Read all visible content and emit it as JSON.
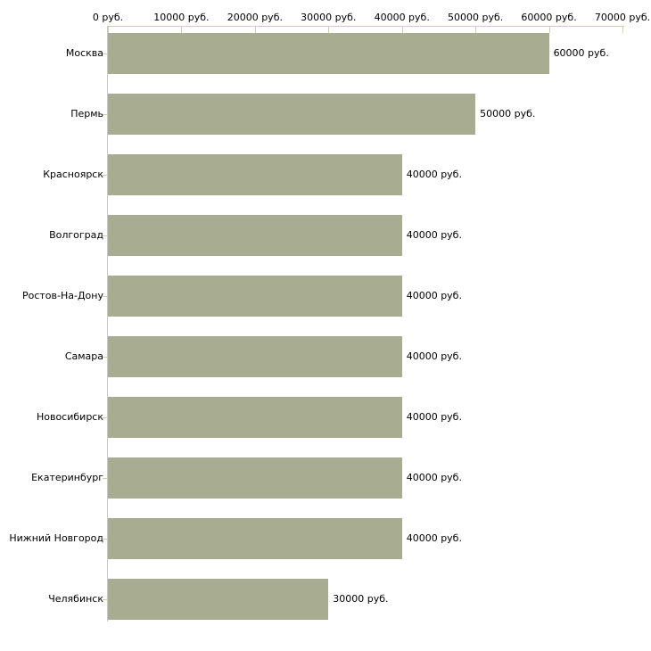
{
  "chart": {
    "background_color": "#ffffff",
    "bar_color": "#a8ad92",
    "value_axis_color": "#d2cfac",
    "category_axis_color": "#c8c8c8",
    "category_tick_color": "#d2cfac",
    "text_color": "#000000"
  },
  "chart_data": {
    "type": "bar",
    "orientation": "horizontal",
    "title": "",
    "xlabel": "",
    "ylabel": "",
    "x_axis_position": "top",
    "xlim": [
      0,
      70000
    ],
    "grid": false,
    "legend": false,
    "x_ticks": [
      0,
      10000,
      20000,
      30000,
      40000,
      50000,
      60000,
      70000
    ],
    "x_tick_labels": [
      "0 руб.",
      "10000 руб.",
      "20000 руб.",
      "30000 руб.",
      "40000 руб.",
      "50000 руб.",
      "60000 руб.",
      "70000 руб."
    ],
    "categories": [
      "Москва",
      "Пермь",
      "Красноярск",
      "Волгоград",
      "Ростов-На-Дону",
      "Самара",
      "Новосибирск",
      "Екатеринбург",
      "Нижний Новгород",
      "Челябинск"
    ],
    "values": [
      60000,
      50000,
      40000,
      40000,
      40000,
      40000,
      40000,
      40000,
      40000,
      30000
    ],
    "value_labels": [
      "60000 руб.",
      "50000 руб.",
      "40000 руб.",
      "40000 руб.",
      "40000 руб.",
      "40000 руб.",
      "40000 руб.",
      "40000 руб.",
      "40000 руб.",
      "30000 руб."
    ]
  }
}
